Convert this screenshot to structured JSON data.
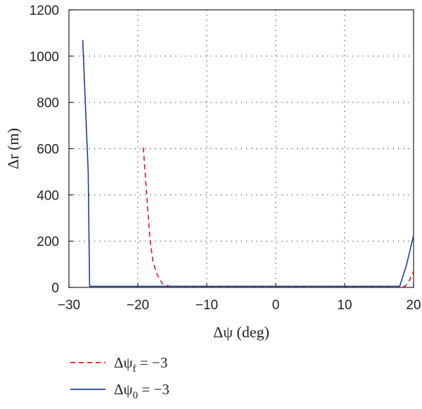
{
  "chart_data": {
    "type": "line",
    "title": "",
    "xlabel": "Δψ (deg)",
    "ylabel": "Δr (m)",
    "xlim": [
      -30,
      20
    ],
    "ylim": [
      0,
      1200
    ],
    "xticks": [
      -30,
      -20,
      -10,
      0,
      10,
      20
    ],
    "yticks": [
      0,
      200,
      400,
      600,
      800,
      1000,
      1200
    ],
    "grid": true,
    "grid_style": "dotted",
    "legend_position": "below",
    "series": [
      {
        "name": "Δψf = −3",
        "color": "#e8141b",
        "dash": "dashed",
        "x": [
          -19.2,
          -18.6,
          -18.2,
          -17.8,
          -17.2,
          -16.4,
          -15.4,
          -10,
          0,
          10,
          18.8,
          19.4,
          20
        ],
        "y": [
          605,
          350,
          200,
          110,
          55,
          15,
          5,
          5,
          5,
          5,
          5,
          30,
          70
        ]
      },
      {
        "name": "Δψ0 = −3",
        "color": "#1f3f95",
        "dash": "solid",
        "x": [
          -28,
          -27.2,
          -27,
          -20,
          -10,
          0,
          10,
          18,
          19,
          20
        ],
        "y": [
          1070,
          500,
          5,
          5,
          5,
          5,
          5,
          5,
          100,
          225
        ]
      }
    ],
    "legend": [
      {
        "prefix": "Δψ",
        "sub": "f",
        "suffix": " = −3"
      },
      {
        "prefix": "Δψ",
        "sub": "0",
        "suffix": " = −3"
      }
    ]
  }
}
